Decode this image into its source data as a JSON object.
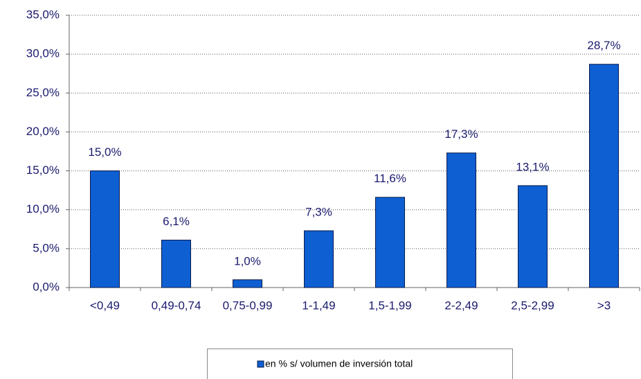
{
  "chart_data": {
    "type": "bar",
    "categories": [
      "<0,49",
      "0,49-0,74",
      "0,75-0,99",
      "1-1,49",
      "1,5-1,99",
      "2-2,49",
      "2,5-2,99",
      ">3"
    ],
    "series": [
      {
        "name": "en % s/ volumen de inversión total",
        "color": "#0e5fd2",
        "values": [
          15.0,
          6.1,
          1.0,
          7.3,
          11.6,
          17.3,
          13.1,
          28.7
        ],
        "value_labels": [
          "15,0%",
          "6,1%",
          "1,0%",
          "7,3%",
          "11,6%",
          "17,3%",
          "13,1%",
          "28,7%"
        ]
      }
    ],
    "ylim": [
      0,
      35
    ],
    "yticks": [
      {
        "value": 0,
        "label": "0,0%"
      },
      {
        "value": 5,
        "label": "5,0%"
      },
      {
        "value": 10,
        "label": "10,0%"
      },
      {
        "value": 15,
        "label": "15,0%"
      },
      {
        "value": 20,
        "label": "20,0%"
      },
      {
        "value": 25,
        "label": "25,0%"
      },
      {
        "value": 30,
        "label": "30,0%"
      },
      {
        "value": 35,
        "label": "35,0%"
      }
    ],
    "grid": true
  }
}
